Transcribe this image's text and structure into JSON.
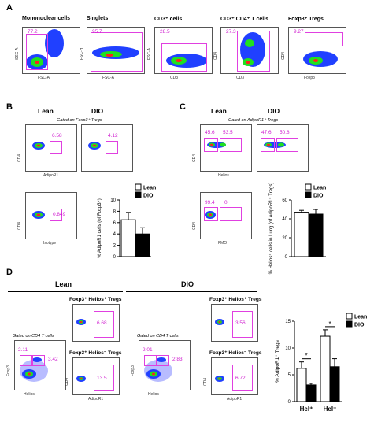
{
  "panels": {
    "A": {
      "label": "A",
      "plots": [
        {
          "title": "Mononuclear cells",
          "x": "FSC-A",
          "y": "SSC-A",
          "pct": "77.2"
        },
        {
          "title": "Singlets",
          "x": "FSC-A",
          "y": "FSC-H",
          "pct": "95.7"
        },
        {
          "title": "CD3⁺ cells",
          "x": "CD3",
          "y": "FSC-A",
          "pct": "28.5"
        },
        {
          "title": "CD3⁺ CD4⁺ T cells",
          "x": "CD3",
          "y": "CD4",
          "pct": "27.3"
        },
        {
          "title": "Foxp3⁺ Tregs",
          "x": "Foxp3",
          "y": "CD4",
          "pct": "9.27"
        }
      ]
    },
    "B": {
      "label": "B",
      "lean": "Lean",
      "dio": "DIO",
      "gated": "Gated on Foxp3⁺ Tregs",
      "x": "AdipoR1",
      "y": "CD4",
      "iso_x": "Isotype",
      "lean_pct": "6.58",
      "dio_pct": "4.12",
      "iso_pct": "0.849"
    },
    "C": {
      "label": "C",
      "lean": "Lean",
      "dio": "DIO",
      "gated": "Gated on AdipoR1⁺ Tregs",
      "x": "Helios",
      "y": "CD4",
      "fmo_x": "FMO",
      "lean_pcts": [
        "45.6",
        "53.5"
      ],
      "dio_pcts": [
        "47.6",
        "50.8"
      ],
      "fmo_pcts": [
        "99.4",
        "0"
      ]
    },
    "D": {
      "label": "D",
      "lean": "Lean",
      "dio": "DIO",
      "gated": "Gated on CD4 T cells",
      "hel_pos_title": "Foxp3⁺ Helios⁺ Tregs",
      "hel_neg_title": "Foxp3⁺ Helios⁻ Tregs",
      "x_main": "Helios",
      "y_main": "Foxp3",
      "x_sub": "AdipoR1",
      "y_sub": "CD4",
      "lean_main_pcts": [
        "2.11",
        "3.42"
      ],
      "dio_main_pcts": [
        "2.01",
        "2.83"
      ],
      "lean_hpos": "6.68",
      "lean_hneg": "13.5",
      "dio_hpos": "3.56",
      "dio_hneg": "6.72"
    }
  },
  "chart_data": [
    {
      "type": "bar",
      "panel": "B",
      "categories": [
        ""
      ],
      "series": [
        {
          "name": "Lean",
          "values": [
            6.5
          ],
          "error": [
            1.3
          ],
          "color": "#ffffff"
        },
        {
          "name": "DIO",
          "values": [
            4.0
          ],
          "error": [
            1.1
          ],
          "color": "#000000"
        }
      ],
      "ylabel": "% AdipoR1 cells (of Foxp3⁺)",
      "ylim": [
        0,
        10
      ],
      "yticks": [
        "0",
        "2",
        "4",
        "6",
        "8",
        "10"
      ]
    },
    {
      "type": "bar",
      "panel": "C",
      "categories": [
        ""
      ],
      "series": [
        {
          "name": "Lean",
          "values": [
            47
          ],
          "error": [
            2
          ],
          "color": "#ffffff"
        },
        {
          "name": "DIO",
          "values": [
            45
          ],
          "error": [
            5
          ],
          "color": "#000000"
        }
      ],
      "ylabel": "% Helios⁺ cells in Lung (of AdipoR1⁺ Tregs)",
      "ylim": [
        0,
        60
      ],
      "yticks": [
        "0",
        "20",
        "40",
        "60"
      ]
    },
    {
      "type": "bar",
      "panel": "D",
      "categories": [
        "Hel⁺",
        "Hel⁻"
      ],
      "series": [
        {
          "name": "Lean",
          "values": [
            6.2,
            12.2
          ],
          "error": [
            1.2,
            1.2
          ],
          "color": "#ffffff"
        },
        {
          "name": "DIO",
          "values": [
            3.1,
            6.5
          ],
          "error": [
            0.3,
            1.5
          ],
          "color": "#000000"
        }
      ],
      "ylabel": "% AdipoR1⁺ Tregs",
      "ylim": [
        0,
        15
      ],
      "yticks": [
        "0",
        "5",
        "10",
        "15"
      ],
      "significance": [
        "*",
        "*"
      ]
    }
  ]
}
